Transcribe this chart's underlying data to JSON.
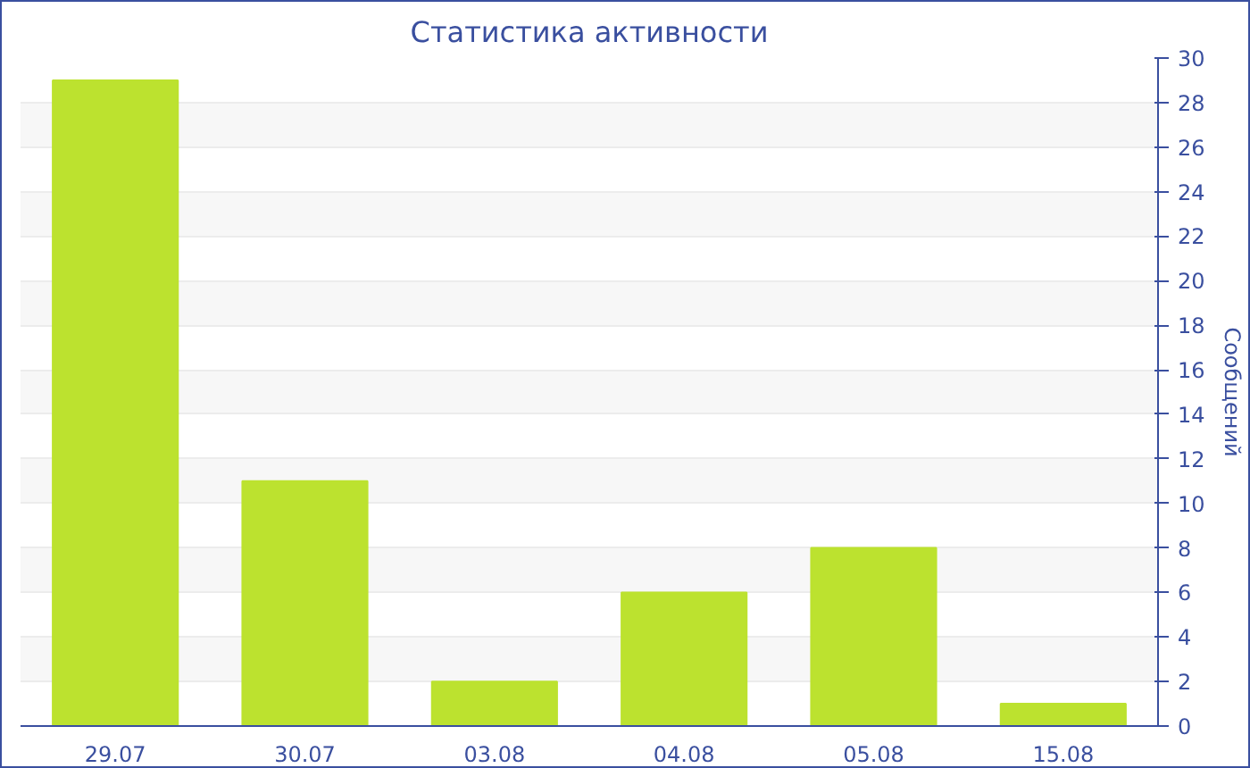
{
  "chart_data": {
    "type": "bar",
    "title": "Статистика активности",
    "ylabel": "Сообщений",
    "categories": [
      "29.07",
      "30.07",
      "03.08",
      "04.08",
      "05.08",
      "15.08"
    ],
    "values": [
      29,
      11,
      2,
      6,
      8,
      1
    ],
    "color": "#bce22f",
    "ylim": [
      0,
      30
    ],
    "yticks": [
      0,
      2,
      4,
      6,
      8,
      10,
      12,
      14,
      16,
      18,
      20,
      22,
      24,
      26,
      28,
      30
    ],
    "grid": "y"
  }
}
